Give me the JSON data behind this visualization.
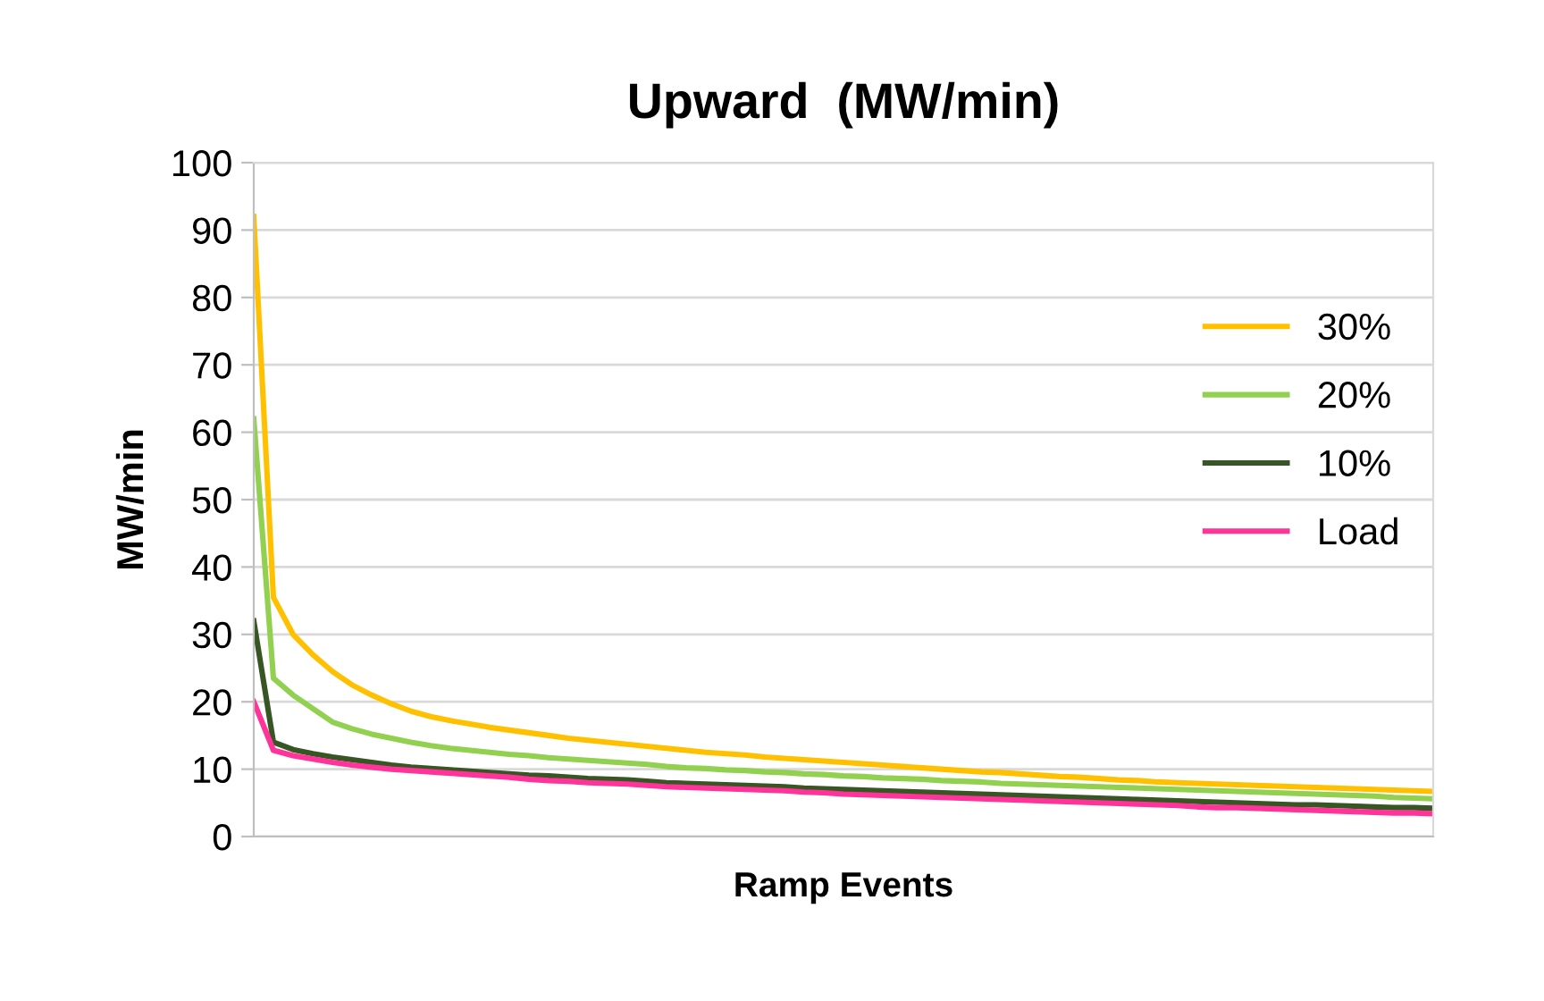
{
  "chart_data": {
    "type": "line",
    "title": "Upward  (MW/min)",
    "xlabel": "Ramp Events",
    "ylabel": "MW/min",
    "categories": [
      null,
      null,
      null,
      null,
      null,
      null,
      null,
      null,
      null,
      null,
      null,
      null,
      null,
      null,
      null,
      null,
      null,
      null,
      null,
      null,
      null,
      null,
      null,
      null,
      null,
      null,
      null,
      null,
      null,
      null,
      null,
      null,
      null,
      null,
      null,
      null,
      null,
      null,
      null,
      null,
      null,
      null,
      null,
      null,
      null,
      null,
      null,
      null,
      null,
      null,
      null,
      null,
      null,
      null,
      null,
      null,
      null,
      null,
      null,
      null,
      null
    ],
    "ylim": [
      0,
      100
    ],
    "yticks": [
      0,
      10,
      20,
      30,
      40,
      50,
      60,
      70,
      80,
      90,
      100
    ],
    "tick_labels": "y",
    "grid": "y",
    "legend": "right",
    "marker": "none",
    "line_style": "solid",
    "series": [
      {
        "name": "30%",
        "color": "#ffc000",
        "values": [
          92,
          35.5,
          30,
          27,
          24.5,
          22.5,
          21,
          19.7,
          18.6,
          17.8,
          17.2,
          16.7,
          16.2,
          15.8,
          15.4,
          15.0,
          14.6,
          14.3,
          14.0,
          13.7,
          13.4,
          13.1,
          12.8,
          12.5,
          12.3,
          12.1,
          11.8,
          11.6,
          11.4,
          11.2,
          11.0,
          10.8,
          10.6,
          10.4,
          10.2,
          10.0,
          9.8,
          9.6,
          9.5,
          9.3,
          9.1,
          8.9,
          8.8,
          8.6,
          8.4,
          8.3,
          8.1,
          8.0,
          7.9,
          7.8,
          7.7,
          7.6,
          7.5,
          7.4,
          7.3,
          7.2,
          7.1,
          7.0,
          6.9,
          6.8,
          6.7
        ]
      },
      {
        "name": "20%",
        "color": "#92d050",
        "values": [
          62,
          23.5,
          21,
          19,
          17,
          16,
          15.2,
          14.6,
          14.0,
          13.5,
          13.1,
          12.8,
          12.5,
          12.2,
          12.0,
          11.7,
          11.5,
          11.3,
          11.1,
          10.9,
          10.7,
          10.4,
          10.2,
          10.1,
          9.9,
          9.8,
          9.6,
          9.5,
          9.3,
          9.2,
          9.0,
          8.9,
          8.7,
          8.6,
          8.5,
          8.3,
          8.2,
          8.1,
          7.9,
          7.8,
          7.7,
          7.6,
          7.5,
          7.4,
          7.3,
          7.2,
          7.1,
          7.0,
          6.9,
          6.8,
          6.7,
          6.6,
          6.5,
          6.4,
          6.3,
          6.2,
          6.1,
          6.0,
          5.8,
          5.7,
          5.6
        ]
      },
      {
        "name": "10%",
        "color": "#375623",
        "values": [
          32,
          14,
          12.9,
          12.3,
          11.8,
          11.4,
          11.0,
          10.6,
          10.3,
          10.1,
          9.9,
          9.7,
          9.5,
          9.3,
          9.1,
          9.0,
          8.8,
          8.6,
          8.5,
          8.4,
          8.2,
          8.0,
          7.9,
          7.8,
          7.7,
          7.6,
          7.5,
          7.4,
          7.2,
          7.1,
          7.0,
          6.9,
          6.8,
          6.7,
          6.6,
          6.5,
          6.4,
          6.3,
          6.2,
          6.1,
          6.0,
          5.9,
          5.8,
          5.7,
          5.6,
          5.5,
          5.4,
          5.3,
          5.2,
          5.1,
          5.0,
          4.9,
          4.8,
          4.7,
          4.7,
          4.6,
          4.5,
          4.4,
          4.3,
          4.3,
          4.2
        ]
      },
      {
        "name": "Load",
        "color": "#ff3399",
        "values": [
          20,
          12.8,
          12,
          11.5,
          11,
          10.6,
          10.3,
          10.0,
          9.8,
          9.6,
          9.4,
          9.2,
          9.0,
          8.8,
          8.5,
          8.3,
          8.2,
          8.0,
          7.9,
          7.8,
          7.6,
          7.4,
          7.3,
          7.2,
          7.1,
          7.0,
          6.9,
          6.8,
          6.6,
          6.5,
          6.3,
          6.2,
          6.1,
          6.0,
          5.9,
          5.8,
          5.7,
          5.6,
          5.5,
          5.4,
          5.3,
          5.2,
          5.1,
          5.0,
          4.9,
          4.8,
          4.7,
          4.6,
          4.4,
          4.3,
          4.3,
          4.2,
          4.1,
          4.0,
          3.9,
          3.8,
          3.7,
          3.6,
          3.5,
          3.5,
          3.4
        ]
      }
    ]
  }
}
